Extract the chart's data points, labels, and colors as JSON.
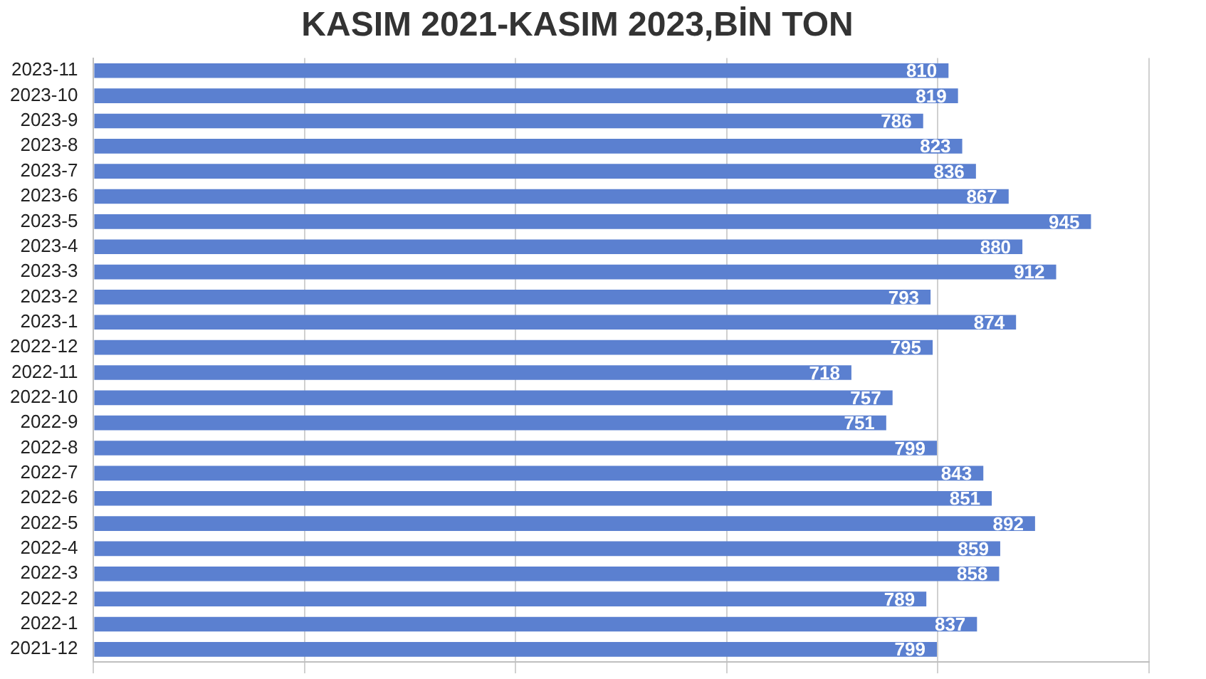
{
  "chart_data": {
    "type": "bar",
    "orientation": "horizontal",
    "title": "KASIM 2021-KASIM 2023,BİN TON",
    "categories": [
      "2023-11",
      "2023-10",
      "2023-9",
      "2023-8",
      "2023-7",
      "2023-6",
      "2023-5",
      "2023-4",
      "2023-3",
      "2023-2",
      "2023-1",
      "2022-12",
      "2022-11",
      "2022-10",
      "2022-9",
      "2022-8",
      "2022-7",
      "2022-6",
      "2022-5",
      "2022-4",
      "2022-3",
      "2022-2",
      "2022-1",
      "2021-12"
    ],
    "values": [
      810,
      819,
      786,
      823,
      836,
      867,
      945,
      880,
      912,
      793,
      874,
      795,
      718,
      757,
      751,
      799,
      843,
      851,
      892,
      859,
      858,
      789,
      837,
      799
    ],
    "color": "#5b80d0",
    "xlim": [
      0,
      1000
    ],
    "xticks": [
      {
        "value": 0,
        "label": null
      },
      {
        "value": 200,
        "label": null
      },
      {
        "value": 400,
        "label": null
      },
      {
        "value": 600,
        "label": null
      },
      {
        "value": 800,
        "label": null
      },
      {
        "value": 1000,
        "label": null
      }
    ],
    "grid": "x",
    "legend": false,
    "tick_labels": "y",
    "data_labels": true
  }
}
